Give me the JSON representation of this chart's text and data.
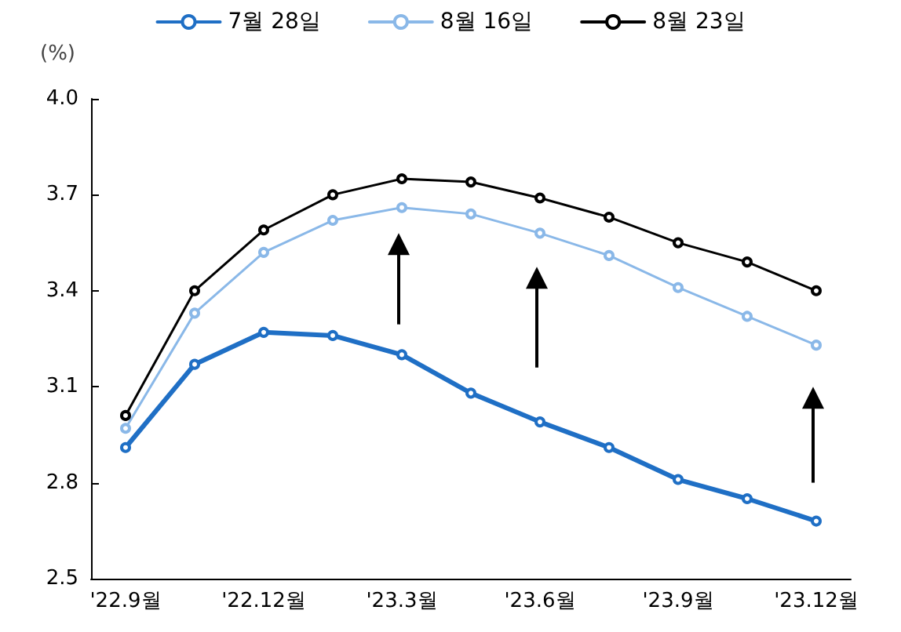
{
  "chart_data": {
    "type": "line",
    "ylabel": "(%)",
    "categories": [
      "'22.9월",
      null,
      "'22.12월",
      null,
      "'23.3월",
      null,
      "'23.6월",
      null,
      "'23.9월",
      null,
      "'23.12월"
    ],
    "series": [
      {
        "name": "7월 28일",
        "color": "#1f6fc5",
        "values": [
          2.91,
          3.17,
          3.27,
          3.26,
          3.2,
          3.08,
          2.99,
          2.91,
          2.81,
          2.75,
          2.68
        ]
      },
      {
        "name": "8월 16일",
        "color": "#8ab8e8",
        "values": [
          2.97,
          3.33,
          3.52,
          3.62,
          3.66,
          3.64,
          3.58,
          3.51,
          3.41,
          3.32,
          3.23
        ]
      },
      {
        "name": "8월 23일",
        "color": "#000000",
        "values": [
          3.01,
          3.4,
          3.59,
          3.7,
          3.75,
          3.74,
          3.69,
          3.63,
          3.55,
          3.49,
          3.4
        ]
      }
    ],
    "ylim": [
      2.5,
      4.0
    ],
    "yticks": [
      2.5,
      2.8,
      3.1,
      3.4,
      3.7,
      {
        "value": 4.0,
        "label": "4.0"
      }
    ],
    "grid": false,
    "legend": "top",
    "marker": "circle",
    "line_style": "solid"
  }
}
